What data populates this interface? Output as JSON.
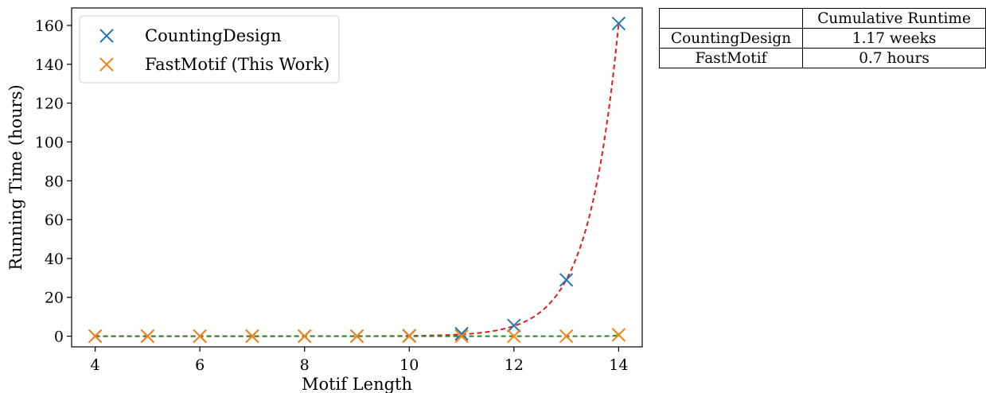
{
  "chart_data": {
    "type": "scatter",
    "xlabel": "Motif Length",
    "ylabel": "Running Time (hours)",
    "xlim": [
      3.55,
      14.45
    ],
    "ylim": [
      -5.5,
      169
    ],
    "xticks": [
      4,
      6,
      8,
      10,
      12,
      14
    ],
    "yticks": [
      0,
      20,
      40,
      60,
      80,
      100,
      120,
      140,
      160
    ],
    "grid": false,
    "legend_position": "top-left",
    "series": [
      {
        "name": "CountingDesign",
        "marker": "x",
        "color": "#1f77b4",
        "x": [
          4,
          5,
          6,
          7,
          8,
          9,
          10,
          11,
          12,
          13,
          14
        ],
        "values": [
          0,
          0,
          0,
          0,
          0,
          0,
          0.2,
          1.2,
          5.5,
          29,
          161
        ]
      },
      {
        "name": "FastMotif (This Work)",
        "marker": "x",
        "color": "#ff7f0e",
        "x": [
          4,
          5,
          6,
          7,
          8,
          9,
          10,
          11,
          12,
          13,
          14
        ],
        "values": [
          0,
          0,
          0,
          0,
          0,
          0,
          0,
          0,
          0,
          0,
          0.7
        ]
      }
    ],
    "fit_lines": [
      {
        "fits": "CountingDesign",
        "style": "dashed",
        "color": "#e41a1c",
        "kind": "exponential"
      },
      {
        "fits": "FastMotif (This Work)",
        "style": "dashed",
        "color": "#228b22",
        "kind": "exponential"
      }
    ]
  },
  "table": {
    "header": [
      "",
      "Cumulative Runtime"
    ],
    "rows": [
      [
        "CountingDesign",
        "1.17 weeks"
      ],
      [
        "FastMotif",
        "0.7 hours"
      ]
    ]
  }
}
